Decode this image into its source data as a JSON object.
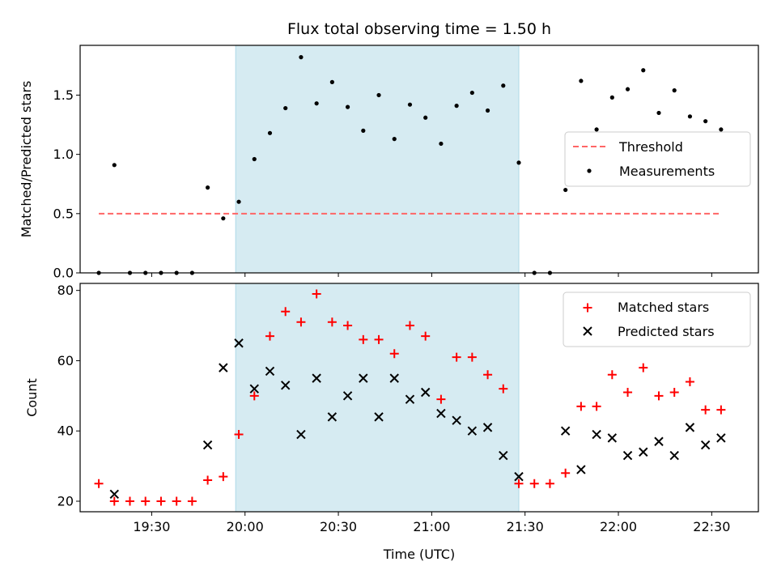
{
  "title": "Flux total observing time = 1.50 h",
  "colors": {
    "threshold": "#ff6666",
    "measurement": "#000000",
    "matched": "#ff0000",
    "predicted": "#000000",
    "shade": "#add8e6"
  },
  "chart_data": [
    {
      "type": "scatter",
      "ylabel": "Matched/Predicted stars",
      "xlim": [
        "19:07",
        "22:45"
      ],
      "ylim": [
        0,
        1.92
      ],
      "yticks": [
        "0.0",
        "0.5",
        "1.0",
        "1.5"
      ],
      "shaded_interval": [
        "19:57",
        "21:28"
      ],
      "legend": {
        "placement": "center-right",
        "entries": [
          "Threshold",
          "Measurements"
        ]
      },
      "threshold": {
        "name": "Threshold",
        "value": 0.5,
        "x_range": [
          "19:13",
          "22:33"
        ]
      },
      "series": [
        {
          "name": "Measurements",
          "points": [
            [
              "19:13",
              0.0
            ],
            [
              "19:18",
              0.91
            ],
            [
              "19:23",
              0.0
            ],
            [
              "19:28",
              0.0
            ],
            [
              "19:33",
              0.0
            ],
            [
              "19:38",
              0.0
            ],
            [
              "19:43",
              0.0
            ],
            [
              "19:48",
              0.72
            ],
            [
              "19:53",
              0.46
            ],
            [
              "19:58",
              0.6
            ],
            [
              "20:03",
              0.96
            ],
            [
              "20:08",
              1.18
            ],
            [
              "20:13",
              1.39
            ],
            [
              "20:18",
              1.82
            ],
            [
              "20:23",
              1.43
            ],
            [
              "20:28",
              1.61
            ],
            [
              "20:33",
              1.4
            ],
            [
              "20:38",
              1.2
            ],
            [
              "20:43",
              1.5
            ],
            [
              "20:48",
              1.13
            ],
            [
              "20:53",
              1.42
            ],
            [
              "20:58",
              1.31
            ],
            [
              "21:03",
              1.09
            ],
            [
              "21:08",
              1.41
            ],
            [
              "21:13",
              1.52
            ],
            [
              "21:18",
              1.37
            ],
            [
              "21:23",
              1.58
            ],
            [
              "21:28",
              0.93
            ],
            [
              "21:33",
              0.0
            ],
            [
              "21:38",
              0.0
            ],
            [
              "21:43",
              0.7
            ],
            [
              "21:48",
              1.62
            ],
            [
              "21:53",
              1.21
            ],
            [
              "21:58",
              1.48
            ],
            [
              "22:03",
              1.55
            ],
            [
              "22:08",
              1.71
            ],
            [
              "22:13",
              1.35
            ],
            [
              "22:18",
              1.54
            ],
            [
              "22:23",
              1.32
            ],
            [
              "22:28",
              1.28
            ],
            [
              "22:33",
              1.21
            ]
          ]
        }
      ]
    },
    {
      "type": "scatter",
      "xlabel": "Time (UTC)",
      "ylabel": "Count",
      "xlim": [
        "19:07",
        "22:45"
      ],
      "ylim": [
        17,
        82
      ],
      "yticks": [
        "20",
        "40",
        "60",
        "80"
      ],
      "xticks": [
        "19:30",
        "20:00",
        "20:30",
        "21:00",
        "21:30",
        "22:00",
        "22:30"
      ],
      "shaded_interval": [
        "19:57",
        "21:28"
      ],
      "legend": {
        "placement": "top-right",
        "entries": [
          "Matched stars",
          "Predicted stars"
        ]
      },
      "series": [
        {
          "name": "Matched stars",
          "marker": "plus",
          "points": [
            [
              "19:13",
              25
            ],
            [
              "19:18",
              20
            ],
            [
              "19:23",
              20
            ],
            [
              "19:28",
              20
            ],
            [
              "19:33",
              20
            ],
            [
              "19:38",
              20
            ],
            [
              "19:43",
              20
            ],
            [
              "19:48",
              26
            ],
            [
              "19:53",
              27
            ],
            [
              "19:58",
              39
            ],
            [
              "20:03",
              50
            ],
            [
              "20:08",
              67
            ],
            [
              "20:13",
              74
            ],
            [
              "20:18",
              71
            ],
            [
              "20:23",
              79
            ],
            [
              "20:28",
              71
            ],
            [
              "20:33",
              70
            ],
            [
              "20:38",
              66
            ],
            [
              "20:43",
              66
            ],
            [
              "20:48",
              62
            ],
            [
              "20:53",
              70
            ],
            [
              "20:58",
              67
            ],
            [
              "21:03",
              49
            ],
            [
              "21:08",
              61
            ],
            [
              "21:13",
              61
            ],
            [
              "21:18",
              56
            ],
            [
              "21:23",
              52
            ],
            [
              "21:28",
              25
            ],
            [
              "21:33",
              25
            ],
            [
              "21:38",
              25
            ],
            [
              "21:43",
              28
            ],
            [
              "21:48",
              47
            ],
            [
              "21:53",
              47
            ],
            [
              "21:58",
              56
            ],
            [
              "22:03",
              51
            ],
            [
              "22:08",
              58
            ],
            [
              "22:13",
              50
            ],
            [
              "22:18",
              51
            ],
            [
              "22:23",
              54
            ],
            [
              "22:28",
              46
            ],
            [
              "22:33",
              46
            ]
          ]
        },
        {
          "name": "Predicted stars",
          "marker": "x",
          "points": [
            [
              "19:18",
              22
            ],
            [
              "19:48",
              36
            ],
            [
              "19:53",
              58
            ],
            [
              "19:58",
              65
            ],
            [
              "20:03",
              52
            ],
            [
              "20:08",
              57
            ],
            [
              "20:13",
              53
            ],
            [
              "20:18",
              39
            ],
            [
              "20:23",
              55
            ],
            [
              "20:28",
              44
            ],
            [
              "20:33",
              50
            ],
            [
              "20:38",
              55
            ],
            [
              "20:43",
              44
            ],
            [
              "20:48",
              55
            ],
            [
              "20:53",
              49
            ],
            [
              "20:58",
              51
            ],
            [
              "21:03",
              45
            ],
            [
              "21:08",
              43
            ],
            [
              "21:13",
              40
            ],
            [
              "21:18",
              41
            ],
            [
              "21:23",
              33
            ],
            [
              "21:28",
              27
            ],
            [
              "21:43",
              40
            ],
            [
              "21:48",
              29
            ],
            [
              "21:53",
              39
            ],
            [
              "21:58",
              38
            ],
            [
              "22:03",
              33
            ],
            [
              "22:08",
              34
            ],
            [
              "22:13",
              37
            ],
            [
              "22:18",
              33
            ],
            [
              "22:23",
              41
            ],
            [
              "22:28",
              36
            ],
            [
              "22:33",
              38
            ]
          ]
        }
      ]
    }
  ]
}
